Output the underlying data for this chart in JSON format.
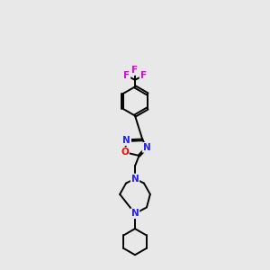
{
  "bg_color": "#e8e8e8",
  "bond_color": "#000000",
  "N_color": "#2020ff",
  "O_color": "#ff0000",
  "F_color": "#e000e0",
  "line_width": 1.4,
  "figsize": [
    3.0,
    3.0
  ],
  "dpi": 100,
  "xlim": [
    3.0,
    7.0
  ],
  "ylim": [
    0.0,
    19.5
  ]
}
